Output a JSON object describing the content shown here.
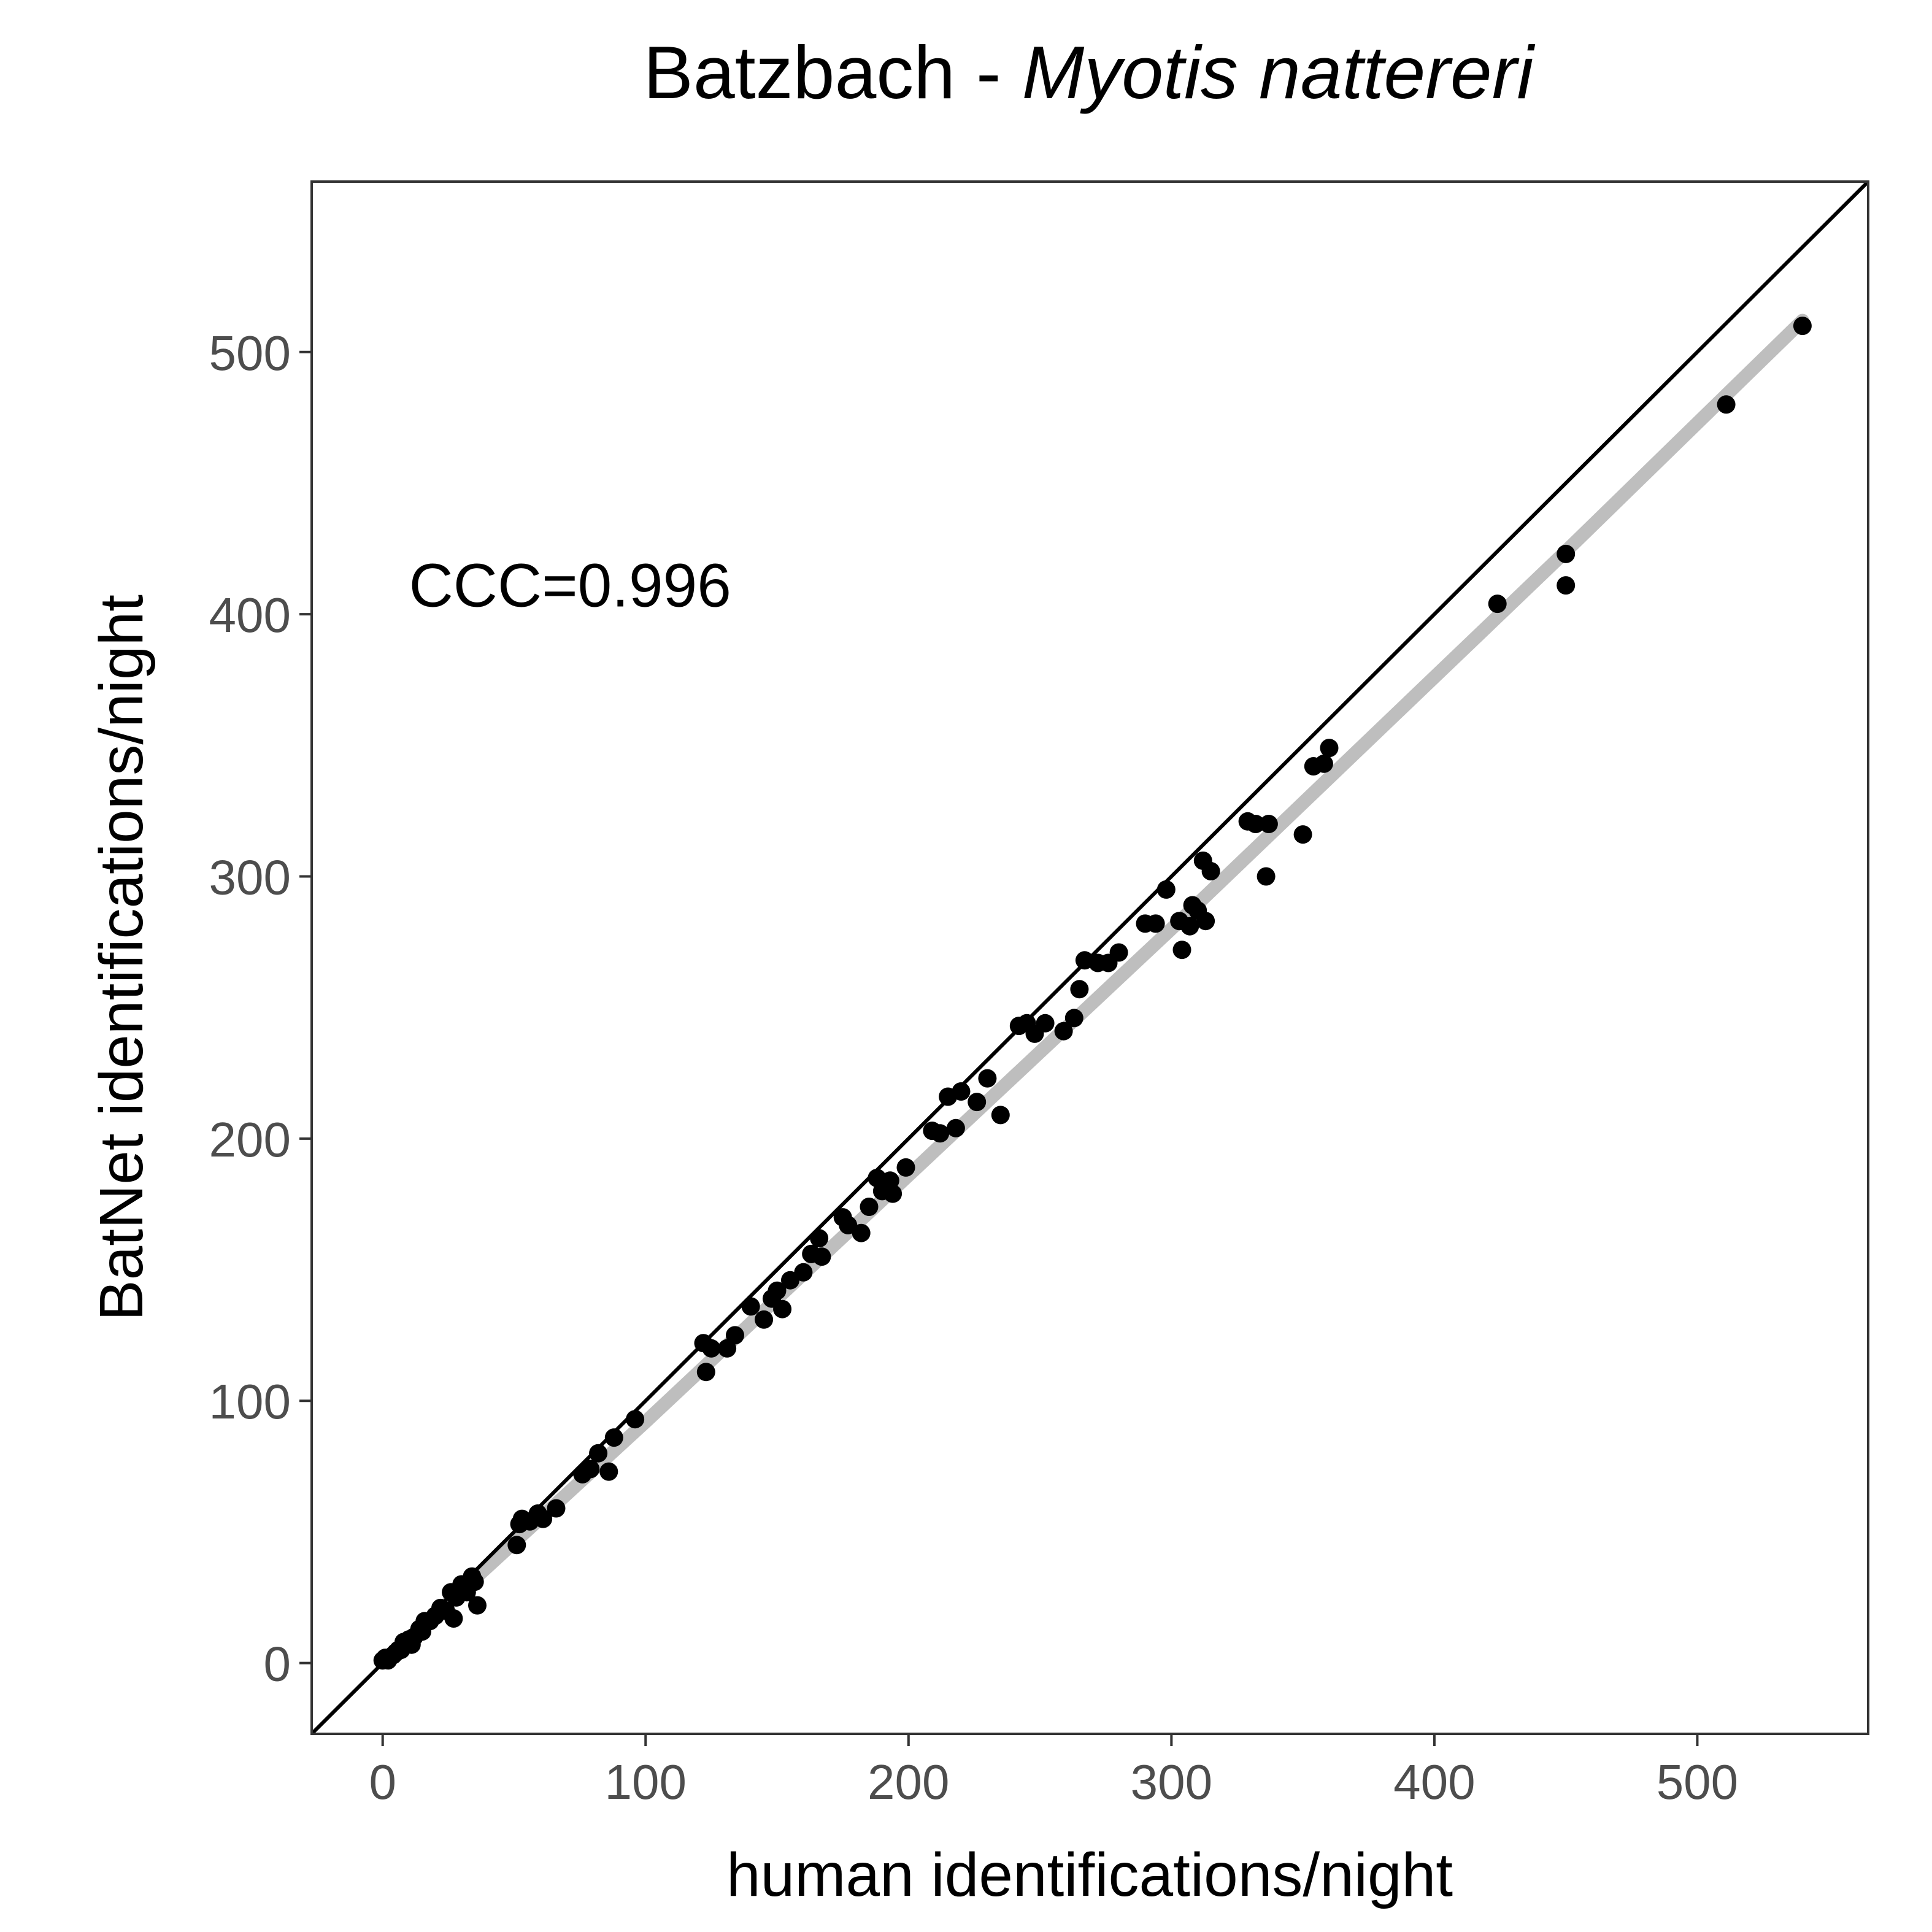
{
  "chart_data": {
    "type": "scatter",
    "title": {
      "plain": "Batzbach - ",
      "italic": "Myotis nattereri"
    },
    "xlabel": "human identifications/night",
    "ylabel": "BatNet identifications/night",
    "xlim": [
      -27,
      565
    ],
    "ylim": [
      -27,
      565
    ],
    "x_ticks": [
      0,
      100,
      200,
      300,
      400,
      500
    ],
    "y_ticks": [
      0,
      100,
      200,
      300,
      400,
      500
    ],
    "grid": false,
    "annotation": {
      "text": "CCC=0.996",
      "x": 10,
      "y": 403
    },
    "reference_line": {
      "kind": "identity",
      "slope": 1,
      "intercept": 0,
      "color": "#000000"
    },
    "smooth_line": {
      "color": "#bebebe",
      "points": [
        [
          0,
          0
        ],
        [
          100,
          92
        ],
        [
          200,
          186
        ],
        [
          300,
          280
        ],
        [
          450,
          424
        ],
        [
          540,
          512
        ]
      ]
    },
    "series": [
      {
        "marker_color": "#000000",
        "points": [
          [
            0,
            1
          ],
          [
            1,
            2
          ],
          [
            2,
            1
          ],
          [
            4,
            3
          ],
          [
            5,
            4
          ],
          [
            6,
            5
          ],
          [
            7,
            5
          ],
          [
            8,
            8
          ],
          [
            9,
            7
          ],
          [
            10,
            9
          ],
          [
            11,
            7
          ],
          [
            12,
            10
          ],
          [
            14,
            13
          ],
          [
            15,
            12
          ],
          [
            16,
            16
          ],
          [
            18,
            16
          ],
          [
            20,
            18
          ],
          [
            22,
            21
          ],
          [
            24,
            20
          ],
          [
            26,
            27
          ],
          [
            27,
            17
          ],
          [
            28,
            25
          ],
          [
            30,
            30
          ],
          [
            32,
            27
          ],
          [
            34,
            33
          ],
          [
            35,
            31
          ],
          [
            36,
            22
          ],
          [
            51,
            45
          ],
          [
            52,
            53
          ],
          [
            53,
            55
          ],
          [
            56,
            54
          ],
          [
            59,
            57
          ],
          [
            61,
            55
          ],
          [
            66,
            59
          ],
          [
            76,
            72
          ],
          [
            79,
            74
          ],
          [
            82,
            80
          ],
          [
            86,
            73
          ],
          [
            88,
            86
          ],
          [
            96,
            93
          ],
          [
            122,
            122
          ],
          [
            123,
            111
          ],
          [
            125,
            120
          ],
          [
            131,
            120
          ],
          [
            134,
            125
          ],
          [
            140,
            136
          ],
          [
            145,
            131
          ],
          [
            148,
            139
          ],
          [
            150,
            142
          ],
          [
            152,
            135
          ],
          [
            155,
            146
          ],
          [
            160,
            149
          ],
          [
            163,
            156
          ],
          [
            166,
            162
          ],
          [
            167,
            155
          ],
          [
            175,
            170
          ],
          [
            177,
            167
          ],
          [
            182,
            164
          ],
          [
            185,
            174
          ],
          [
            188,
            185
          ],
          [
            190,
            180
          ],
          [
            193,
            184
          ],
          [
            194,
            179
          ],
          [
            199,
            189
          ],
          [
            209,
            203
          ],
          [
            212,
            202
          ],
          [
            215,
            216
          ],
          [
            218,
            204
          ],
          [
            220,
            218
          ],
          [
            226,
            214
          ],
          [
            230,
            223
          ],
          [
            235,
            209
          ],
          [
            242,
            243
          ],
          [
            245,
            244
          ],
          [
            248,
            240
          ],
          [
            252,
            244
          ],
          [
            259,
            241
          ],
          [
            263,
            246
          ],
          [
            265,
            257
          ],
          [
            267,
            268
          ],
          [
            272,
            267
          ],
          [
            276,
            267
          ],
          [
            280,
            271
          ],
          [
            290,
            282
          ],
          [
            294,
            282
          ],
          [
            298,
            295
          ],
          [
            303,
            283
          ],
          [
            304,
            272
          ],
          [
            307,
            281
          ],
          [
            308,
            289
          ],
          [
            310,
            287
          ],
          [
            312,
            306
          ],
          [
            313,
            283
          ],
          [
            315,
            302
          ],
          [
            329,
            321
          ],
          [
            332,
            320
          ],
          [
            336,
            300
          ],
          [
            337,
            320
          ],
          [
            350,
            316
          ],
          [
            354,
            342
          ],
          [
            358,
            343
          ],
          [
            360,
            349
          ],
          [
            424,
            404
          ],
          [
            450,
            423
          ],
          [
            450,
            411
          ],
          [
            511,
            480
          ],
          [
            540,
            510
          ]
        ]
      }
    ]
  }
}
